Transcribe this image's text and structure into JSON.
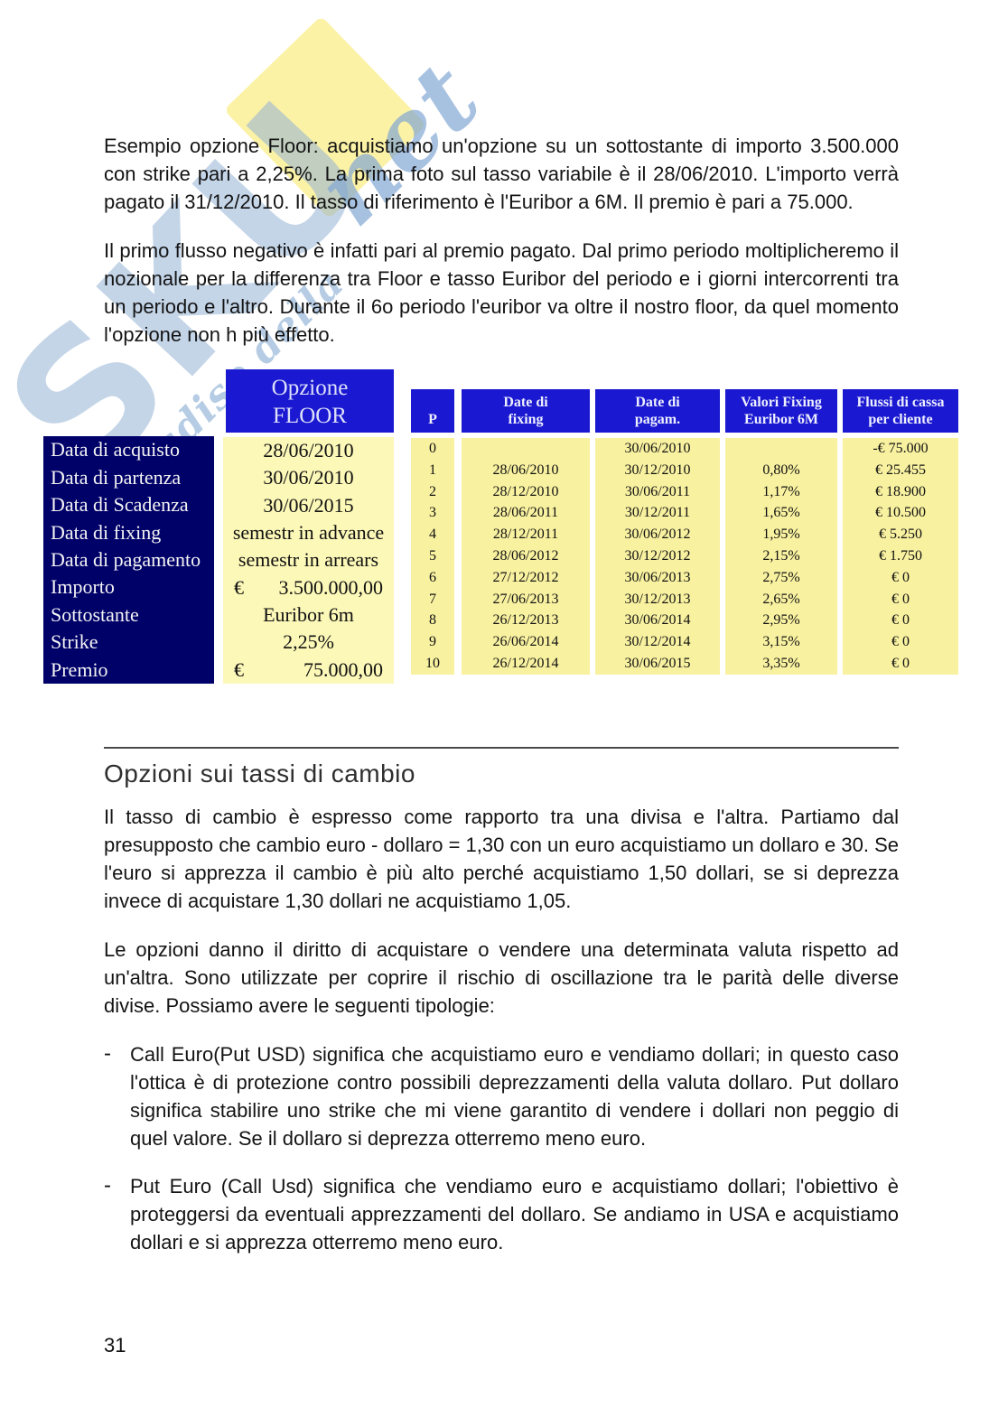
{
  "page": {
    "number": "31"
  },
  "watermark": {
    "letters": "SKU",
    "net": "net",
    "slogan": "paRadiso della"
  },
  "paragraphs": {
    "p1": "Esempio opzione Floor: acquistiamo un'opzione su un sottostante di importo 3.500.000 con strike pari a 2,25%. La prima foto sul tasso variabile è il 28/06/2010. L'importo verrà pagato il 31/12/2010. Il tasso di riferimento è l'Euribor a 6M. Il premio è pari a 75.000.",
    "p2": "Il primo flusso negativo è infatti pari al premio pagato. Dal primo periodo moltiplicheremo il nozionale per la differenza tra Floor e tasso Euribor del periodo e i giorni intercorrenti tra un periodo e l'altro. Durante il 6o periodo l'euribor va oltre il nostro floor, da quel momento l'opzione non h più effetto.",
    "p3": "Il tasso di cambio è espresso come rapporto tra una divisa e l'altra. Partiamo dal presupposto che cambio euro - dollaro = 1,30 con un euro acquistiamo un dollaro e 30. Se l'euro si apprezza il cambio è più alto perché acquistiamo 1,50 dollari, se si deprezza invece di acquistare 1,30 dollari ne acquistiamo 1,05.",
    "p4": "Le opzioni danno il diritto di acquistare o vendere una determinata valuta rispetto ad un'altra. Sono utilizzate per coprire il rischio di oscillazione tra le parità delle diverse divise. Possiamo avere le seguenti tipologie:"
  },
  "section": {
    "heading": "Opzioni sui tassi di cambio"
  },
  "bullets": {
    "marker": "-",
    "items": [
      "Call Euro(Put USD) significa che acquistiamo euro e vendiamo dollari; in questo caso l'ottica è di protezione contro possibili deprezzamenti della valuta dollaro. Put dollaro significa stabilire uno strike che mi viene garantito di vendere i dollari non peggio di quel valore. Se il dollaro si deprezza otterremo meno euro.",
      "Put Euro (Call Usd) significa che vendiamo euro e acquistiamo dollari; l'obiettivo è proteggersi da eventuali apprezzamenti del dollaro. Se andiamo in USA e acquistiamo dollari e si apprezza otterremo meno euro."
    ]
  },
  "floor_table": {
    "header": [
      "Opzione",
      "FLOOR"
    ],
    "rows": [
      {
        "label": "Data di acquisto",
        "value": "28/06/2010"
      },
      {
        "label": "Data di partenza",
        "value": "30/06/2010"
      },
      {
        "label": "Data di Scadenza",
        "value": "30/06/2015"
      },
      {
        "label": "Data di fixing",
        "value": "semestr in advance"
      },
      {
        "label": "Data di pagamento",
        "value": "semestr in arrears"
      },
      {
        "label": "Importo",
        "currency": "€",
        "value": "3.500.000,00"
      },
      {
        "label": "Sottostante",
        "value": "Euribor 6m"
      },
      {
        "label": "Strike",
        "value": "2,25%"
      },
      {
        "label": "Premio",
        "currency": "€",
        "value": "75.000,00"
      }
    ]
  },
  "cashflow_table": {
    "headers": [
      [
        "P"
      ],
      [
        "Date di",
        "fixing"
      ],
      [
        "Date di",
        "pagam."
      ],
      [
        "Valori Fixing",
        "Euribor 6M"
      ],
      [
        "Flussi di cassa",
        "per cliente"
      ]
    ],
    "rows": [
      {
        "p": "0",
        "fixing": "",
        "pagam": "30/06/2010",
        "valori": "",
        "flussi": "-€ 75.000"
      },
      {
        "p": "1",
        "fixing": "28/06/2010",
        "pagam": "30/12/2010",
        "valori": "0,80%",
        "flussi": "€ 25.455"
      },
      {
        "p": "2",
        "fixing": "28/12/2010",
        "pagam": "30/06/2011",
        "valori": "1,17%",
        "flussi": "€ 18.900"
      },
      {
        "p": "3",
        "fixing": "28/06/2011",
        "pagam": "30/12/2011",
        "valori": "1,65%",
        "flussi": "€ 10.500"
      },
      {
        "p": "4",
        "fixing": "28/12/2011",
        "pagam": "30/06/2012",
        "valori": "1,95%",
        "flussi": "€ 5.250"
      },
      {
        "p": "5",
        "fixing": "28/06/2012",
        "pagam": "30/12/2012",
        "valori": "2,15%",
        "flussi": "€ 1.750"
      },
      {
        "p": "6",
        "fixing": "27/12/2012",
        "pagam": "30/06/2013",
        "valori": "2,75%",
        "flussi": "€ 0"
      },
      {
        "p": "7",
        "fixing": "27/06/2013",
        "pagam": "30/12/2013",
        "valori": "2,65%",
        "flussi": "€ 0"
      },
      {
        "p": "8",
        "fixing": "26/12/2013",
        "pagam": "30/06/2014",
        "valori": "2,95%",
        "flussi": "€ 0"
      },
      {
        "p": "9",
        "fixing": "26/06/2014",
        "pagam": "30/12/2014",
        "valori": "3,15%",
        "flussi": "€ 0"
      },
      {
        "p": "10",
        "fixing": "26/12/2014",
        "pagam": "30/06/2015",
        "valori": "3,35%",
        "flussi": "€ 0"
      }
    ]
  },
  "colors": {
    "table_header_blue": "#1a18d0",
    "label_navy": "#000069",
    "cell_yellow_left": "#fcf8b8",
    "cell_yellow_right": "#f8f1a0",
    "watermark_blue": "#94b2d6",
    "watermark_yellow": "#faf096"
  }
}
